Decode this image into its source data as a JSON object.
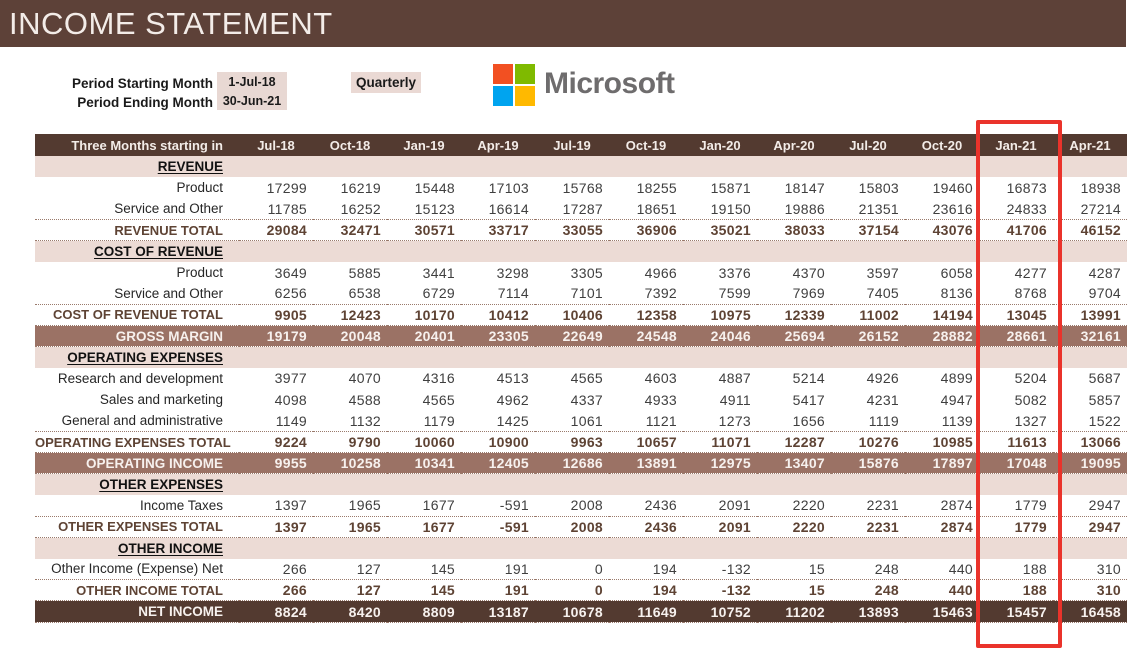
{
  "title": "INCOME STATEMENT",
  "period": {
    "starting_label": "Period Starting Month",
    "starting_value": "1-Jul-18",
    "ending_label": "Period Ending Month",
    "ending_value": "30-Jun-21",
    "frequency": "Quarterly"
  },
  "logo": {
    "text": "Microsoft",
    "square_colors": [
      "#f25022",
      "#7fba00",
      "#00a4ef",
      "#ffb900"
    ],
    "text_color": "#6e6c6d"
  },
  "colors": {
    "title_bar": "#5d4138",
    "header_row": "#533a30",
    "band_row": "#9b7265",
    "net_income_row": "#533a30",
    "section_row": "#ecdbd5",
    "value_box": "#e8d8d3",
    "total_text": "#5e4334",
    "highlight_red": "#ea332b"
  },
  "table": {
    "corner_label": "Three Months starting in",
    "columns": [
      "Jul-18",
      "Oct-18",
      "Jan-19",
      "Apr-19",
      "Jul-19",
      "Oct-19",
      "Jan-20",
      "Apr-20",
      "Jul-20",
      "Oct-20",
      "Jan-21",
      "Apr-21"
    ],
    "highlighted_column": "Jan-21",
    "rows": [
      {
        "type": "section",
        "label": "REVENUE"
      },
      {
        "type": "item",
        "label": "Product",
        "values": [
          17299,
          16219,
          15448,
          17103,
          15768,
          18255,
          15871,
          18147,
          15803,
          19460,
          16873,
          18938
        ]
      },
      {
        "type": "item",
        "label": "Service and Other",
        "values": [
          11785,
          16252,
          15123,
          16614,
          17287,
          18651,
          19150,
          19886,
          21351,
          23616,
          24833,
          27214
        ]
      },
      {
        "type": "total",
        "label": "REVENUE TOTAL",
        "values": [
          29084,
          32471,
          30571,
          33717,
          33055,
          36906,
          35021,
          38033,
          37154,
          43076,
          41706,
          46152
        ]
      },
      {
        "type": "section",
        "label": "COST OF REVENUE"
      },
      {
        "type": "item",
        "label": "Product",
        "values": [
          3649,
          5885,
          3441,
          3298,
          3305,
          4966,
          3376,
          4370,
          3597,
          6058,
          4277,
          4287
        ]
      },
      {
        "type": "item",
        "label": "Service and Other",
        "values": [
          6256,
          6538,
          6729,
          7114,
          7101,
          7392,
          7599,
          7969,
          7405,
          8136,
          8768,
          9704
        ]
      },
      {
        "type": "total",
        "label": "COST OF REVENUE TOTAL",
        "values": [
          9905,
          12423,
          10170,
          10412,
          10406,
          12358,
          10975,
          12339,
          11002,
          14194,
          13045,
          13991
        ]
      },
      {
        "type": "band",
        "label": "GROSS MARGIN",
        "values": [
          19179,
          20048,
          20401,
          23305,
          22649,
          24548,
          24046,
          25694,
          26152,
          28882,
          28661,
          32161
        ]
      },
      {
        "type": "section",
        "label": "OPERATING EXPENSES"
      },
      {
        "type": "item",
        "label": "Research and development",
        "values": [
          3977,
          4070,
          4316,
          4513,
          4565,
          4603,
          4887,
          5214,
          4926,
          4899,
          5204,
          5687
        ]
      },
      {
        "type": "item",
        "label": "Sales and marketing",
        "values": [
          4098,
          4588,
          4565,
          4962,
          4337,
          4933,
          4911,
          5417,
          4231,
          4947,
          5082,
          5857
        ]
      },
      {
        "type": "item",
        "label": "General and administrative",
        "values": [
          1149,
          1132,
          1179,
          1425,
          1061,
          1121,
          1273,
          1656,
          1119,
          1139,
          1327,
          1522
        ]
      },
      {
        "type": "total",
        "label": "OPERATING EXPENSES TOTAL",
        "values": [
          9224,
          9790,
          10060,
          10900,
          9963,
          10657,
          11071,
          12287,
          10276,
          10985,
          11613,
          13066
        ]
      },
      {
        "type": "band",
        "label": "OPERATING INCOME",
        "values": [
          9955,
          10258,
          10341,
          12405,
          12686,
          13891,
          12975,
          13407,
          15876,
          17897,
          17048,
          19095
        ]
      },
      {
        "type": "section",
        "label": "OTHER EXPENSES"
      },
      {
        "type": "item",
        "label": "Income Taxes",
        "values": [
          1397,
          1965,
          1677,
          -591,
          2008,
          2436,
          2091,
          2220,
          2231,
          2874,
          1779,
          2947
        ]
      },
      {
        "type": "total",
        "label": "OTHER EXPENSES TOTAL",
        "values": [
          1397,
          1965,
          1677,
          -591,
          2008,
          2436,
          2091,
          2220,
          2231,
          2874,
          1779,
          2947
        ]
      },
      {
        "type": "section",
        "label": "OTHER INCOME"
      },
      {
        "type": "item",
        "label": "Other Income (Expense) Net",
        "values": [
          266,
          127,
          145,
          191,
          0,
          194,
          -132,
          15,
          248,
          440,
          188,
          310
        ]
      },
      {
        "type": "total",
        "label": "OTHER INCOME TOTAL",
        "values": [
          266,
          127,
          145,
          191,
          0,
          194,
          -132,
          15,
          248,
          440,
          188,
          310
        ]
      },
      {
        "type": "band-dark",
        "label": "NET INCOME",
        "values": [
          8824,
          8420,
          8809,
          13187,
          10678,
          11649,
          10752,
          11202,
          13893,
          15463,
          15457,
          16458
        ]
      }
    ]
  }
}
